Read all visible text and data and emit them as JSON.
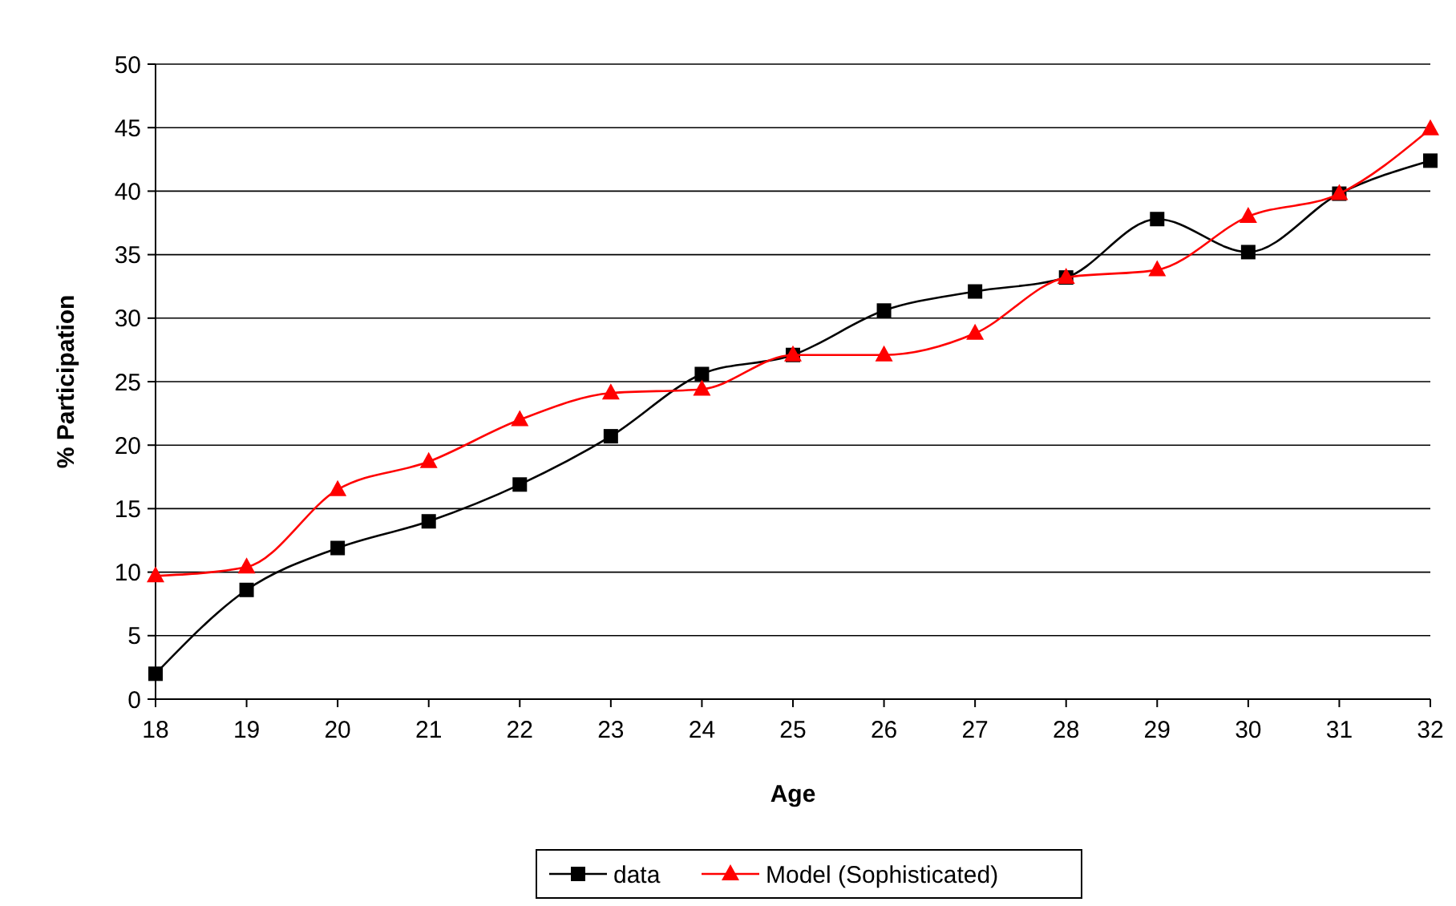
{
  "chart_data": {
    "type": "line",
    "xlabel": "Age",
    "ylabel": "% Participation",
    "x": [
      18,
      19,
      20,
      21,
      22,
      23,
      24,
      25,
      26,
      27,
      28,
      29,
      30,
      31,
      32
    ],
    "xlim": [
      18,
      32
    ],
    "xticks": [
      18,
      19,
      20,
      21,
      22,
      23,
      24,
      25,
      26,
      27,
      28,
      29,
      30,
      31,
      32
    ],
    "ylim": [
      0,
      50
    ],
    "yticks": [
      0,
      5,
      10,
      15,
      20,
      25,
      30,
      35,
      40,
      45,
      50
    ],
    "grid": "y",
    "legend": "bottom",
    "series": [
      {
        "name": "data",
        "color": "#000000",
        "marker": "square",
        "values": [
          2,
          8.6,
          11.9,
          14,
          16.9,
          20.7,
          25.6,
          27.1,
          30.6,
          32.1,
          33.2,
          37.8,
          35.2,
          39.8,
          42.4
        ]
      },
      {
        "name": "Model (Sophisticated)",
        "color": "#ff0000",
        "marker": "triangle",
        "values": [
          9.7,
          10.4,
          16.5,
          18.7,
          22,
          24.1,
          24.4,
          27.1,
          27.1,
          28.8,
          33.2,
          33.8,
          38,
          39.8,
          44.9
        ]
      }
    ]
  }
}
